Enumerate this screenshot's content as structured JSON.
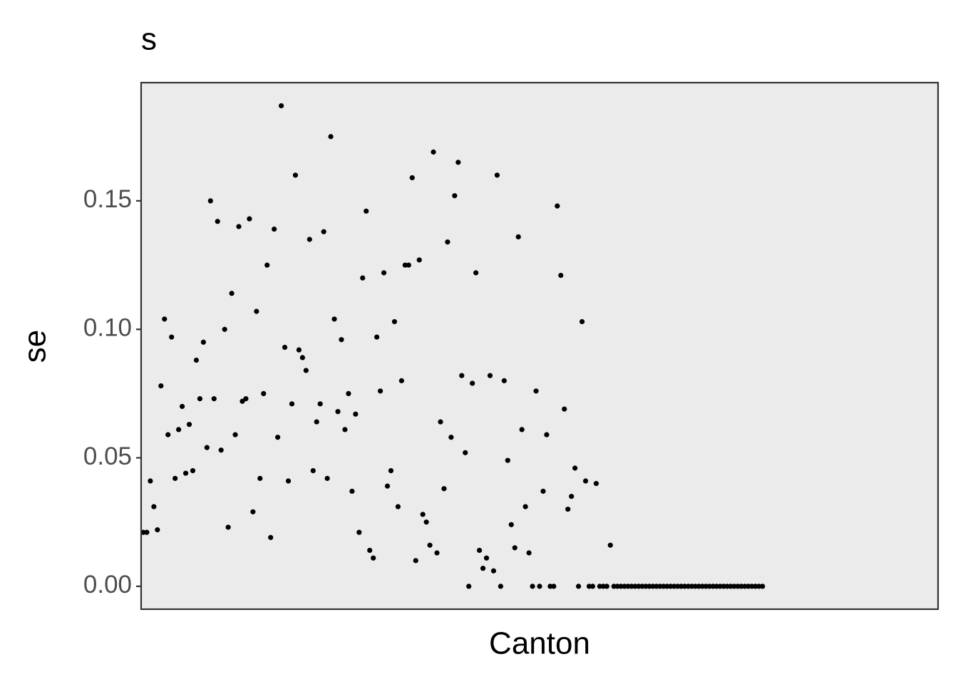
{
  "chart_data": {
    "type": "scatter",
    "title": "s",
    "x_label": "Canton",
    "y_label": "se",
    "color": "#000000",
    "categories": [
      null,
      null,
      null,
      null,
      null,
      null,
      null,
      null,
      null,
      null,
      null,
      null,
      null,
      null,
      null,
      null,
      null,
      null,
      null,
      null,
      null,
      null,
      null,
      null,
      null,
      null,
      null,
      null,
      null,
      null,
      null,
      null,
      null,
      null,
      null,
      null,
      null,
      null,
      null,
      null,
      null,
      null,
      null,
      null,
      null,
      null,
      null,
      null,
      null,
      null,
      null,
      null,
      null,
      null,
      null,
      null,
      null,
      null,
      null,
      null,
      null,
      null,
      null,
      null,
      null,
      null,
      null,
      null,
      null,
      null,
      null,
      null,
      null,
      null,
      null,
      null,
      null,
      null,
      null,
      null,
      null,
      null,
      null,
      null,
      null,
      null,
      null,
      null,
      null,
      null,
      null,
      null,
      null,
      null,
      null,
      null,
      null,
      null,
      null,
      null,
      null,
      null,
      null,
      null,
      null,
      null,
      null,
      null,
      null,
      null,
      null,
      null,
      null,
      null,
      null,
      null,
      null,
      null,
      null,
      null,
      null,
      null,
      null,
      null,
      null,
      null,
      null,
      null,
      null,
      null,
      null,
      null,
      null,
      null,
      null,
      null,
      null,
      null,
      null,
      null,
      null,
      null,
      null,
      null,
      null,
      null,
      null,
      null,
      null,
      null,
      null,
      null,
      null,
      null,
      null,
      null,
      null,
      null,
      null,
      null,
      null,
      null,
      null,
      null,
      null,
      null,
      null,
      null,
      null,
      null,
      null,
      null,
      null,
      null,
      null,
      null,
      null,
      null,
      null,
      null,
      null,
      null,
      null,
      null,
      null,
      null,
      null,
      null,
      null,
      null,
      null,
      null,
      null,
      null,
      null,
      null,
      null,
      null,
      null,
      null,
      null,
      null,
      null,
      null,
      null,
      null,
      null,
      null,
      null,
      null,
      null,
      null,
      null,
      null,
      null,
      null,
      null,
      null,
      null,
      null,
      null,
      null,
      null,
      null,
      null
    ],
    "values": [
      0.021,
      0.021,
      0.041,
      0.031,
      0.022,
      0.078,
      0.104,
      0.059,
      0.097,
      0.042,
      0.061,
      0.07,
      0.044,
      0.063,
      0.045,
      0.088,
      0.073,
      0.095,
      0.054,
      0.15,
      0.073,
      0.142,
      0.053,
      0.1,
      0.023,
      0.114,
      0.059,
      0.14,
      0.072,
      0.073,
      0.143,
      0.029,
      0.107,
      0.042,
      0.075,
      0.125,
      0.019,
      0.139,
      0.058,
      0.187,
      0.093,
      0.041,
      0.071,
      0.16,
      0.092,
      0.089,
      0.084,
      0.135,
      0.045,
      0.064,
      0.071,
      0.138,
      0.042,
      0.175,
      0.104,
      0.068,
      0.096,
      0.061,
      0.075,
      0.037,
      0.067,
      0.021,
      0.12,
      0.146,
      0.014,
      0.011,
      0.097,
      0.076,
      0.122,
      0.039,
      0.045,
      0.103,
      0.031,
      0.08,
      0.125,
      0.125,
      0.159,
      0.01,
      0.127,
      0.028,
      0.025,
      0.016,
      0.169,
      0.013,
      0.064,
      0.038,
      0.134,
      0.058,
      0.152,
      0.165,
      0.082,
      0.052,
      0,
      0.079,
      0.122,
      0.014,
      0.007,
      0.011,
      0.082,
      0.006,
      0.16,
      0,
      0.08,
      0.049,
      0.024,
      0.015,
      0.136,
      0.061,
      0.031,
      0.013,
      0,
      0.076,
      0,
      0.037,
      0.059,
      0,
      0,
      0.148,
      0.121,
      0.069,
      0.03,
      0.035,
      0.046,
      0,
      0.103,
      0.041,
      0,
      0,
      0.04,
      0,
      0,
      0,
      0.016,
      0,
      0,
      0,
      0,
      0,
      0,
      0,
      0,
      0,
      0,
      0,
      0,
      0,
      0,
      0,
      0,
      0,
      0,
      0,
      0,
      0,
      0,
      0,
      0,
      0,
      0,
      0,
      0,
      0,
      0,
      0,
      0,
      0,
      0,
      0,
      0,
      0,
      0,
      0,
      0,
      0,
      0,
      0,
      null,
      null,
      null,
      null,
      null,
      null,
      null,
      null,
      null,
      null,
      null,
      null,
      null,
      null,
      null,
      null,
      null,
      null,
      null,
      null,
      null,
      null,
      null,
      null,
      null,
      null,
      null,
      null,
      null,
      null,
      null,
      null,
      null,
      null,
      null,
      null,
      null,
      null,
      null,
      null,
      null,
      null,
      null,
      null,
      null,
      null,
      null,
      null,
      null
    ],
    "ylim": [
      -0.0089,
      0.196
    ],
    "yticks": [
      {
        "value": 0,
        "label": "0.00"
      },
      0.05,
      {
        "value": 0.1,
        "label": "0.10"
      },
      0.15
    ]
  }
}
